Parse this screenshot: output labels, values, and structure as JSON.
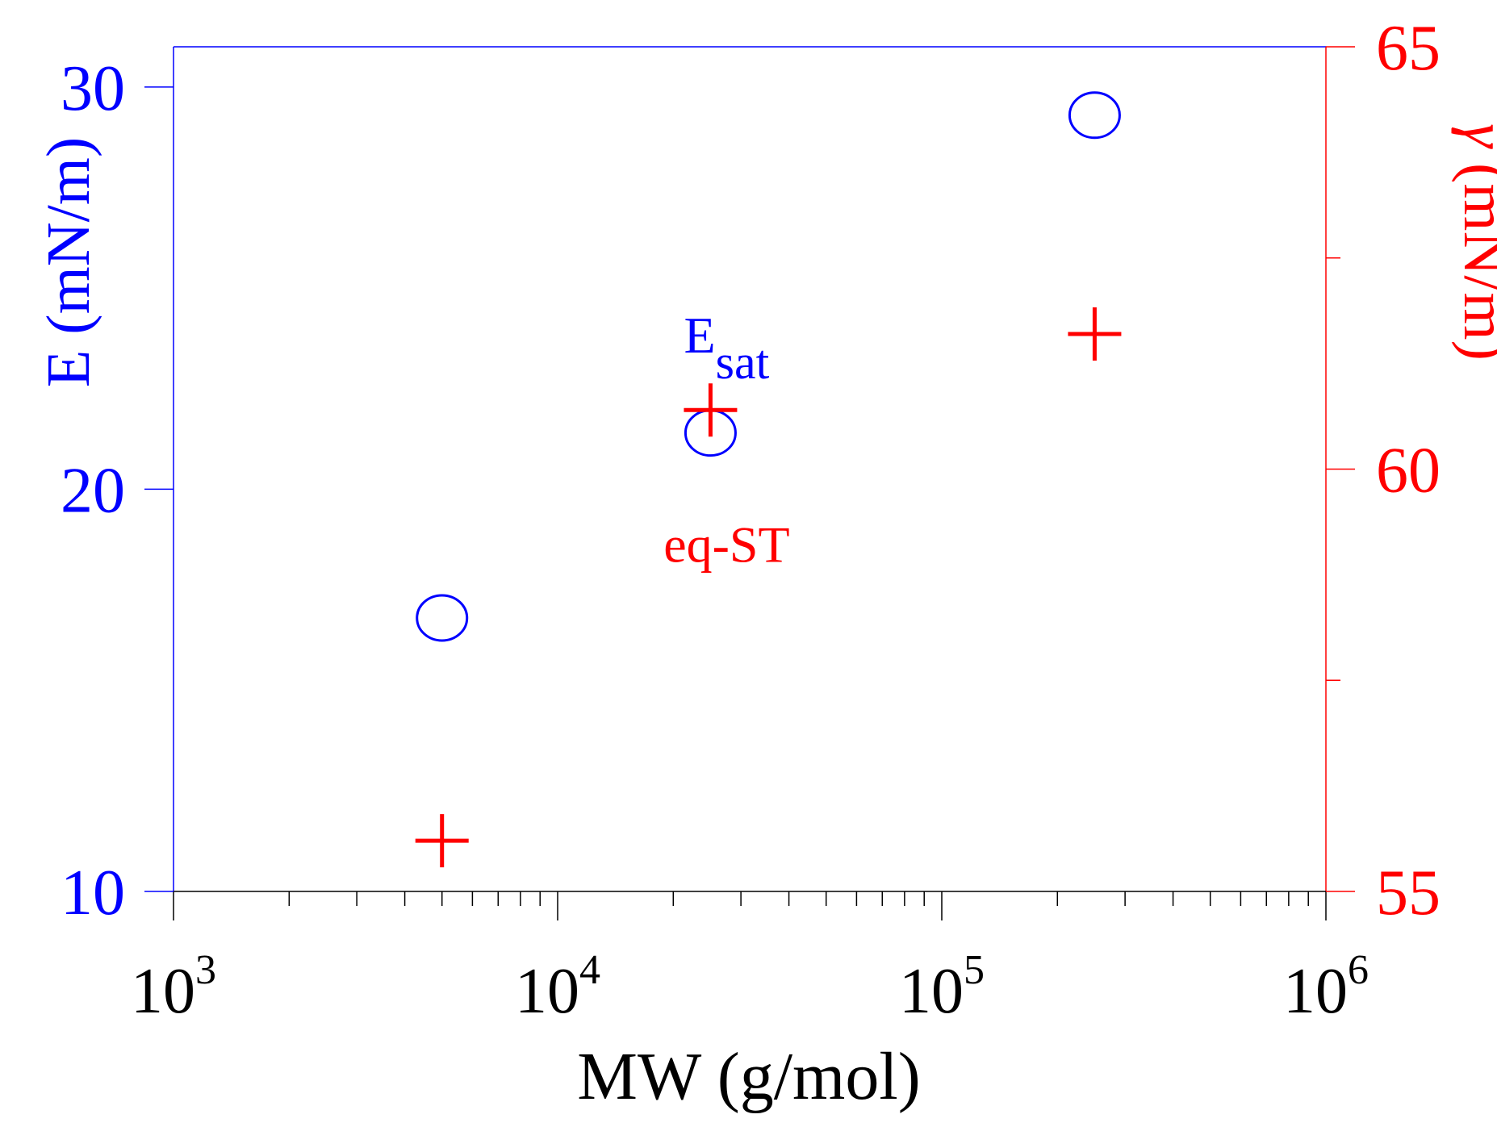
{
  "chart_data": {
    "type": "scatter",
    "x_scale": "log",
    "xlim": [
      1000,
      1000000
    ],
    "xlabel": "MW (g/mol)",
    "x_ticks": [
      {
        "value": 1000,
        "base": "10",
        "exp": "3"
      },
      {
        "value": 10000,
        "base": "10",
        "exp": "4"
      },
      {
        "value": 100000,
        "base": "10",
        "exp": "5"
      },
      {
        "value": 1000000,
        "base": "10",
        "exp": "6"
      }
    ],
    "y_left": {
      "label": "E (mN/m)",
      "lim": [
        10,
        31
      ],
      "ticks": [
        10,
        20,
        30
      ],
      "tick_labels": [
        "10",
        "20",
        "30"
      ],
      "color": "#0000ff"
    },
    "y_right": {
      "label_symbol": "γ",
      "label_rest": " (mN/m)",
      "lim": [
        55,
        65
      ],
      "ticks": [
        55,
        60,
        65
      ],
      "tick_labels": [
        "55",
        "60",
        "65"
      ],
      "minor_ticks": [
        57.5,
        62.5
      ],
      "color": "#ff0000"
    },
    "series": [
      {
        "name": "E_sat",
        "axis": "left",
        "marker": "open-circle",
        "color": "#0000ff",
        "x": [
          5000,
          25000,
          250000
        ],
        "y": [
          16.8,
          21.4,
          29.3
        ]
      },
      {
        "name": "eq-ST",
        "axis": "right",
        "marker": "plus",
        "color": "#ff0000",
        "x": [
          5000,
          25000,
          250000
        ],
        "y": [
          55.6,
          60.7,
          61.6
        ]
      }
    ],
    "annotations": [
      {
        "main": "E",
        "sub": "sat",
        "color": "#0000ff",
        "x": 25000,
        "y": 23.4,
        "axis": "left"
      },
      {
        "main": "eq-ST",
        "sub": "",
        "color": "#ff0000",
        "x": 25000,
        "y": 58.9,
        "axis": "right"
      }
    ]
  }
}
